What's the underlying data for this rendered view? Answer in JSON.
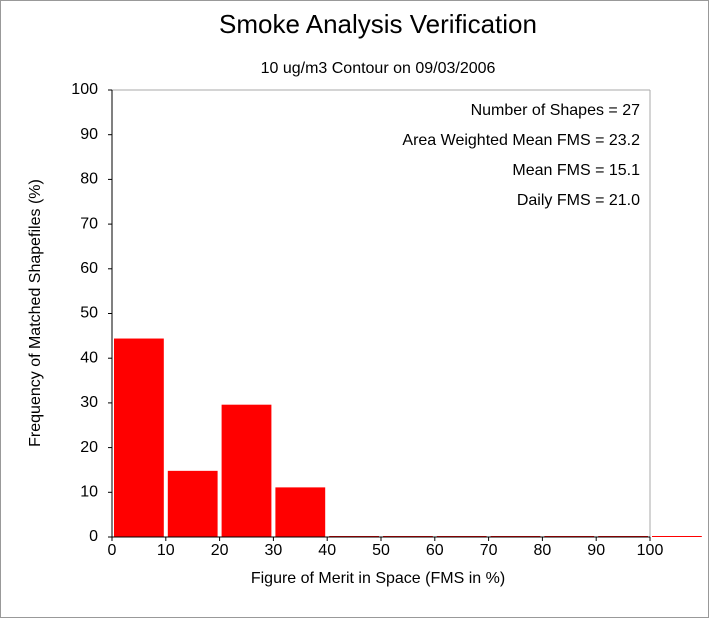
{
  "chart_data": {
    "type": "histogram",
    "title": "Smoke Analysis Verification",
    "subtitle": "10 ug/m3 Contour on 09/03/2006",
    "x_label": "Figure of Merit in Space (FMS in %)",
    "y_label": "Frequency of Matched Shapefiles (%)",
    "bins": [
      0,
      10,
      20,
      30,
      40,
      50,
      60,
      70,
      80,
      90,
      100,
      110
    ],
    "values": [
      44.4,
      14.8,
      29.6,
      11.1,
      0,
      0,
      0,
      0,
      0,
      0,
      0
    ],
    "color": "#ff0000",
    "xlim": [
      0,
      100
    ],
    "ylim": [
      0,
      100
    ],
    "xticks": [
      0,
      10,
      20,
      30,
      40,
      50,
      60,
      70,
      80,
      90,
      100
    ],
    "yticks": [
      0,
      10,
      20,
      30,
      40,
      50,
      60,
      70,
      80,
      90,
      100
    ],
    "annotations": [
      "Number of Shapes = 27",
      "Area Weighted Mean FMS = 23.2",
      "Mean FMS = 15.1",
      "Daily FMS = 21.0"
    ]
  }
}
